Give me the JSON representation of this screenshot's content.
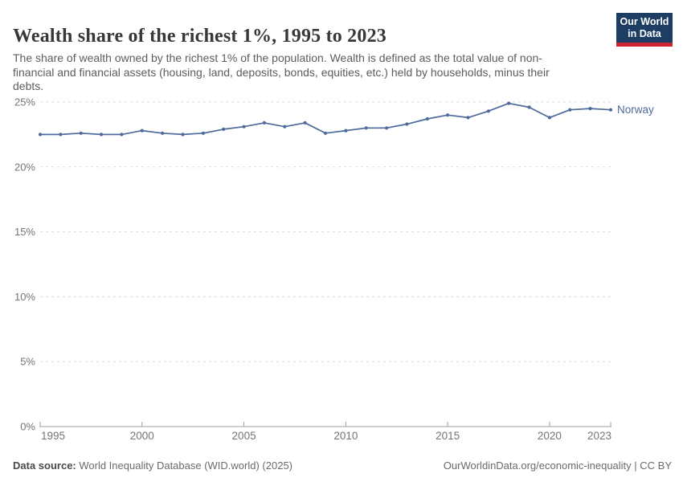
{
  "page": {
    "background": "#ffffff"
  },
  "header": {
    "title": "Wealth share of the richest 1%, 1995 to 2023",
    "subtitle": "The share of wealth owned by the richest 1% of the population. Wealth is defined as the total value of non-financial and financial assets (housing, land, deposits, bonds, equities, etc.) held by households, minus their debts.",
    "logo": {
      "line1": "Our World",
      "line2": "in Data",
      "background": "#1d3d63",
      "accent": "#cd2332",
      "text_color": "#ffffff"
    }
  },
  "chart_data": {
    "type": "line",
    "title": "Wealth share of the richest 1%, 1995 to 2023",
    "xlabel": "",
    "ylabel": "",
    "x": [
      1995,
      1996,
      1997,
      1998,
      1999,
      2000,
      2001,
      2002,
      2003,
      2004,
      2005,
      2006,
      2007,
      2008,
      2009,
      2010,
      2011,
      2012,
      2013,
      2014,
      2015,
      2016,
      2017,
      2018,
      2019,
      2020,
      2021,
      2022,
      2023
    ],
    "series": [
      {
        "name": "Norway",
        "color": "#4C6A9C",
        "values": [
          22.5,
          22.5,
          22.6,
          22.5,
          22.5,
          22.8,
          22.6,
          22.5,
          22.6,
          22.9,
          23.1,
          23.4,
          23.1,
          23.4,
          22.6,
          22.8,
          23.0,
          23.0,
          23.3,
          23.7,
          24.0,
          23.8,
          24.3,
          24.9,
          24.6,
          23.8,
          24.4,
          24.5,
          24.4
        ]
      }
    ],
    "ylim": [
      0,
      25
    ],
    "xlim": [
      1995,
      2023
    ],
    "yticks": [
      {
        "value": 0,
        "label": "0%"
      },
      {
        "value": 5,
        "label": "5%"
      },
      {
        "value": 10,
        "label": "10%"
      },
      {
        "value": 15,
        "label": "15%"
      },
      {
        "value": 20,
        "label": "20%"
      },
      {
        "value": 25,
        "label": "25%"
      }
    ],
    "xticks": [
      {
        "value": 1995,
        "label": "1995"
      },
      {
        "value": 2000,
        "label": "2000"
      },
      {
        "value": 2005,
        "label": "2005"
      },
      {
        "value": 2010,
        "label": "2010"
      },
      {
        "value": 2015,
        "label": "2015"
      },
      {
        "value": 2020,
        "label": "2020"
      },
      {
        "value": 2023,
        "label": "2023"
      }
    ],
    "grid": "horizontal-dashed",
    "legend_position": "end-of-line",
    "colors": {
      "gridline": "#dadada",
      "axis": "#a0a0a0",
      "tick_label": "#757575"
    }
  },
  "footer": {
    "datasource_label": "Data source:",
    "datasource_value": " World Inequality Database (WID.world) (2025)",
    "credit": "OurWorldinData.org/economic-inequality | CC BY"
  }
}
